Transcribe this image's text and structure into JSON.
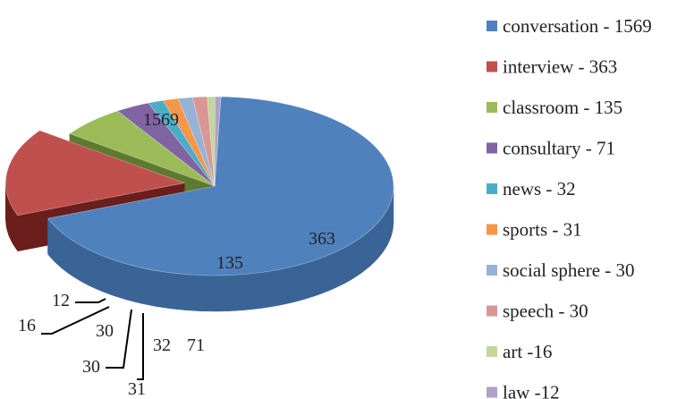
{
  "chart_data": {
    "type": "pie",
    "style": "3d-exploded",
    "legend_position": "right",
    "title": "",
    "slices": [
      {
        "label": "conversation",
        "value": 1569,
        "legend": "conversation - 1569",
        "color": "#4F81BD",
        "side": "#3A6496",
        "exploded": false
      },
      {
        "label": "interview",
        "value": 363,
        "legend": "interview - 363",
        "color": "#C0504D",
        "side": "#6B1E1C",
        "exploded": true
      },
      {
        "label": "classroom",
        "value": 135,
        "legend": "classroom - 135",
        "color": "#9BBB59",
        "side": "#5E7A2E",
        "exploded": false
      },
      {
        "label": "consultary",
        "value": 71,
        "legend": "consultary - 71",
        "color": "#8064A2",
        "side": "#4F3A6A",
        "exploded": false
      },
      {
        "label": "news",
        "value": 32,
        "legend": "news - 32",
        "color": "#4BACC6",
        "side": "#2E7F94",
        "exploded": false
      },
      {
        "label": "sports",
        "value": 31,
        "legend": "sports - 31",
        "color": "#F79646",
        "side": "#B8661F",
        "exploded": false
      },
      {
        "label": "social sphere",
        "value": 30,
        "legend": "social sphere - 30",
        "color": "#95B3D7",
        "side": "#6A89AE",
        "exploded": false
      },
      {
        "label": "speech",
        "value": 30,
        "legend": "speech - 30",
        "color": "#D99694",
        "side": "#A86866",
        "exploded": false
      },
      {
        "label": "art",
        "value": 16,
        "legend": "art -16",
        "color": "#C3D69B",
        "side": "#8FA466",
        "exploded": false
      },
      {
        "label": "law",
        "value": 12,
        "legend": "law -12",
        "color": "#B2A1C7",
        "side": "#7F6E96",
        "exploded": false
      }
    ]
  }
}
